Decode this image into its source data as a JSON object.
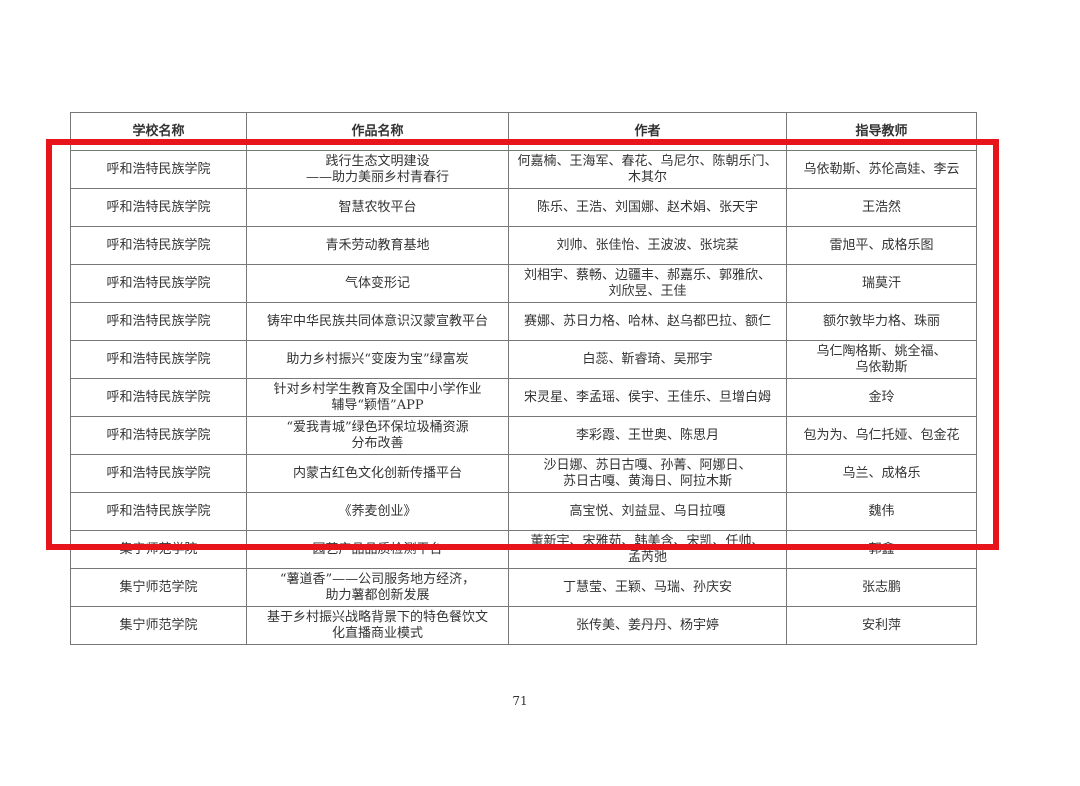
{
  "table": {
    "headers": [
      "学校名称",
      "作品名称",
      "作者",
      "指导教师"
    ],
    "rows": [
      [
        "呼和浩特民族学院",
        "践行生态文明建设\n——助力美丽乡村青春行",
        "何嘉楠、王海军、春花、乌尼尔、陈朝乐门、\n木其尔",
        "乌依勒斯、苏伦高娃、李云"
      ],
      [
        "呼和浩特民族学院",
        "智慧农牧平台",
        "陈乐、王浩、刘国娜、赵术娟、张天宇",
        "王浩然"
      ],
      [
        "呼和浩特民族学院",
        "青禾劳动教育基地",
        "刘帅、张佳怡、王波波、张垸棻",
        "雷旭平、成格乐图"
      ],
      [
        "呼和浩特民族学院",
        "气体变形记",
        "刘相宇、蔡畅、边疆丰、郝嘉乐、郭雅欣、\n刘欣昱、王佳",
        "瑞莫汗"
      ],
      [
        "呼和浩特民族学院",
        "铸牢中华民族共同体意识汉蒙宣教平台",
        "赛娜、苏日力格、哈林、赵乌都巴拉、额仁",
        "额尔敦毕力格、珠丽"
      ],
      [
        "呼和浩特民族学院",
        "助力乡村振兴“变废为宝”绿富炭",
        "白蕊、靳睿琦、吴邢宇",
        "乌仁陶格斯、姚全福、\n乌依勒斯"
      ],
      [
        "呼和浩特民族学院",
        "针对乡村学生教育及全国中小学作业\n辅导“颖悟”APP",
        "宋灵星、李孟瑶、侯宇、王佳乐、旦增白姆",
        "金玲"
      ],
      [
        "呼和浩特民族学院",
        "“爱我青城”绿色环保垃圾桶资源\n分布改善",
        "李彩霞、王世奥、陈思月",
        "包为为、乌仁托娅、包金花"
      ],
      [
        "呼和浩特民族学院",
        "内蒙古红色文化创新传播平台",
        "沙日娜、苏日古嘎、孙菁、阿娜日、\n苏日古嘎、黄海日、阿拉木斯",
        "乌兰、成格乐"
      ],
      [
        "呼和浩特民族学院",
        "《荞麦创业》",
        "高宝悦、刘益显、乌日拉嘎",
        "魏伟"
      ],
      [
        "集宁师范学院",
        "园艺产品品质检测平台",
        "董新宇、宋雅茹、韩美含、宋凯、任帅、\n孟芮弛",
        "郭鑫"
      ],
      [
        "集宁师范学院",
        "“薯道香”——公司服务地方经济，\n助力薯都创新发展",
        "丁慧莹、王颖、马瑞、孙庆安",
        "张志鹏"
      ],
      [
        "集宁师范学院",
        "基于乡村振兴战略背景下的特色餐饮文\n化直播商业模式",
        "张传美、姜丹丹、杨宇婷",
        "安利萍"
      ]
    ]
  },
  "page_number": "71",
  "colors": {
    "highlight_box": "#e8141c"
  }
}
